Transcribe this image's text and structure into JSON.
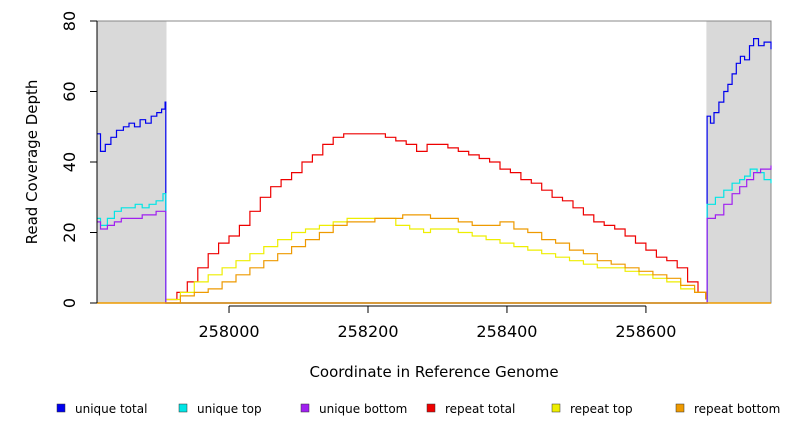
{
  "chart_data": {
    "type": "line",
    "title": "",
    "xlabel": "Coordinate in Reference Genome",
    "ylabel": "Read Coverage Depth",
    "xlim": [
      257810,
      258780
    ],
    "ylim": [
      0,
      80
    ],
    "x_ticks": [
      258000,
      258200,
      258400,
      258600
    ],
    "y_ticks": [
      0,
      20,
      40,
      60,
      80
    ],
    "grid": false,
    "legend_position": "bottom",
    "shaded_regions": [
      {
        "x": [
          257810,
          257910
        ],
        "color": "#d9d9d9"
      },
      {
        "x": [
          258687,
          258780
        ],
        "color": "#d9d9d9"
      }
    ],
    "series": [
      {
        "name": "unique total",
        "color": "#0000ee",
        "points": [
          [
            257810,
            48
          ],
          [
            257815,
            43
          ],
          [
            257822,
            45
          ],
          [
            257830,
            47
          ],
          [
            257838,
            49
          ],
          [
            257848,
            50
          ],
          [
            257856,
            51
          ],
          [
            257864,
            50
          ],
          [
            257872,
            52
          ],
          [
            257880,
            51
          ],
          [
            257888,
            53
          ],
          [
            257896,
            54
          ],
          [
            257903,
            55
          ],
          [
            257908,
            57
          ],
          [
            257909,
            0
          ],
          [
            258687,
            0
          ],
          [
            258688,
            53
          ],
          [
            258693,
            51
          ],
          [
            258698,
            54
          ],
          [
            258705,
            57
          ],
          [
            258712,
            60
          ],
          [
            258718,
            62
          ],
          [
            258724,
            65
          ],
          [
            258730,
            68
          ],
          [
            258736,
            70
          ],
          [
            258742,
            69
          ],
          [
            258749,
            73
          ],
          [
            258755,
            75
          ],
          [
            258762,
            73
          ],
          [
            258770,
            74
          ],
          [
            258780,
            72
          ]
        ]
      },
      {
        "name": "unique top",
        "color": "#00e5e5",
        "points": [
          [
            257810,
            24
          ],
          [
            257815,
            22
          ],
          [
            257825,
            24
          ],
          [
            257835,
            26
          ],
          [
            257845,
            27
          ],
          [
            257855,
            27
          ],
          [
            257865,
            28
          ],
          [
            257875,
            27
          ],
          [
            257885,
            28
          ],
          [
            257895,
            29
          ],
          [
            257905,
            31
          ],
          [
            257909,
            0
          ],
          [
            258687,
            0
          ],
          [
            258688,
            28
          ],
          [
            258700,
            30
          ],
          [
            258712,
            32
          ],
          [
            258724,
            34
          ],
          [
            258735,
            35
          ],
          [
            258742,
            36
          ],
          [
            258750,
            38
          ],
          [
            258760,
            37
          ],
          [
            258770,
            35
          ],
          [
            258780,
            34
          ]
        ]
      },
      {
        "name": "unique bottom",
        "color": "#a020f0",
        "points": [
          [
            257810,
            23
          ],
          [
            257815,
            21
          ],
          [
            257825,
            22
          ],
          [
            257835,
            23
          ],
          [
            257845,
            24
          ],
          [
            257855,
            24
          ],
          [
            257865,
            24
          ],
          [
            257875,
            25
          ],
          [
            257885,
            25
          ],
          [
            257895,
            26
          ],
          [
            257905,
            26
          ],
          [
            257909,
            0
          ],
          [
            258687,
            0
          ],
          [
            258688,
            24
          ],
          [
            258700,
            25
          ],
          [
            258712,
            28
          ],
          [
            258724,
            31
          ],
          [
            258735,
            33
          ],
          [
            258745,
            35
          ],
          [
            258755,
            37
          ],
          [
            258765,
            38
          ],
          [
            258772,
            38
          ],
          [
            258780,
            39
          ]
        ]
      },
      {
        "name": "repeat total",
        "color": "#ee0000",
        "points": [
          [
            257910,
            1
          ],
          [
            257925,
            3
          ],
          [
            257940,
            6
          ],
          [
            257955,
            10
          ],
          [
            257970,
            14
          ],
          [
            257985,
            17
          ],
          [
            258000,
            19
          ],
          [
            258015,
            22
          ],
          [
            258030,
            26
          ],
          [
            258045,
            30
          ],
          [
            258060,
            33
          ],
          [
            258075,
            35
          ],
          [
            258090,
            37
          ],
          [
            258105,
            40
          ],
          [
            258120,
            42
          ],
          [
            258135,
            45
          ],
          [
            258150,
            47
          ],
          [
            258165,
            48
          ],
          [
            258180,
            48
          ],
          [
            258195,
            48
          ],
          [
            258210,
            48
          ],
          [
            258225,
            47
          ],
          [
            258240,
            46
          ],
          [
            258255,
            45
          ],
          [
            258270,
            43
          ],
          [
            258285,
            45
          ],
          [
            258300,
            45
          ],
          [
            258315,
            44
          ],
          [
            258330,
            43
          ],
          [
            258345,
            42
          ],
          [
            258360,
            41
          ],
          [
            258375,
            40
          ],
          [
            258390,
            38
          ],
          [
            258405,
            37
          ],
          [
            258420,
            35
          ],
          [
            258435,
            34
          ],
          [
            258450,
            32
          ],
          [
            258465,
            30
          ],
          [
            258480,
            29
          ],
          [
            258495,
            27
          ],
          [
            258510,
            25
          ],
          [
            258525,
            23
          ],
          [
            258540,
            22
          ],
          [
            258555,
            21
          ],
          [
            258570,
            19
          ],
          [
            258585,
            17
          ],
          [
            258600,
            15
          ],
          [
            258615,
            13
          ],
          [
            258630,
            12
          ],
          [
            258645,
            10
          ],
          [
            258660,
            6
          ],
          [
            258675,
            3
          ],
          [
            258686,
            1
          ]
        ]
      },
      {
        "name": "repeat top",
        "color": "#eeee00",
        "points": [
          [
            257910,
            1
          ],
          [
            257930,
            3
          ],
          [
            257950,
            6
          ],
          [
            257970,
            8
          ],
          [
            257990,
            10
          ],
          [
            258010,
            12
          ],
          [
            258030,
            14
          ],
          [
            258050,
            16
          ],
          [
            258070,
            18
          ],
          [
            258090,
            20
          ],
          [
            258110,
            21
          ],
          [
            258130,
            22
          ],
          [
            258150,
            23
          ],
          [
            258170,
            24
          ],
          [
            258190,
            24
          ],
          [
            258210,
            24
          ],
          [
            258230,
            24
          ],
          [
            258240,
            22
          ],
          [
            258260,
            21
          ],
          [
            258280,
            20
          ],
          [
            258290,
            21
          ],
          [
            258310,
            21
          ],
          [
            258330,
            20
          ],
          [
            258350,
            19
          ],
          [
            258370,
            18
          ],
          [
            258390,
            17
          ],
          [
            258410,
            16
          ],
          [
            258430,
            15
          ],
          [
            258450,
            14
          ],
          [
            258470,
            13
          ],
          [
            258490,
            12
          ],
          [
            258510,
            11
          ],
          [
            258530,
            10
          ],
          [
            258550,
            10
          ],
          [
            258570,
            9
          ],
          [
            258590,
            8
          ],
          [
            258610,
            7
          ],
          [
            258630,
            6
          ],
          [
            258650,
            4
          ],
          [
            258670,
            3
          ],
          [
            258686,
            1
          ]
        ]
      },
      {
        "name": "repeat bottom",
        "color": "#ee9a00",
        "points": [
          [
            257910,
            0
          ],
          [
            257930,
            2
          ],
          [
            257950,
            3
          ],
          [
            257970,
            4
          ],
          [
            257990,
            6
          ],
          [
            258010,
            8
          ],
          [
            258030,
            10
          ],
          [
            258050,
            12
          ],
          [
            258070,
            14
          ],
          [
            258090,
            16
          ],
          [
            258110,
            18
          ],
          [
            258130,
            20
          ],
          [
            258150,
            22
          ],
          [
            258170,
            23
          ],
          [
            258190,
            23
          ],
          [
            258210,
            24
          ],
          [
            258230,
            24
          ],
          [
            258250,
            25
          ],
          [
            258270,
            25
          ],
          [
            258290,
            24
          ],
          [
            258310,
            24
          ],
          [
            258330,
            23
          ],
          [
            258350,
            22
          ],
          [
            258370,
            22
          ],
          [
            258390,
            23
          ],
          [
            258410,
            21
          ],
          [
            258430,
            20
          ],
          [
            258450,
            18
          ],
          [
            258470,
            17
          ],
          [
            258490,
            15
          ],
          [
            258510,
            14
          ],
          [
            258530,
            12
          ],
          [
            258550,
            11
          ],
          [
            258570,
            10
          ],
          [
            258590,
            9
          ],
          [
            258610,
            8
          ],
          [
            258630,
            7
          ],
          [
            258650,
            5
          ],
          [
            258670,
            3
          ],
          [
            258686,
            1
          ]
        ]
      }
    ]
  }
}
